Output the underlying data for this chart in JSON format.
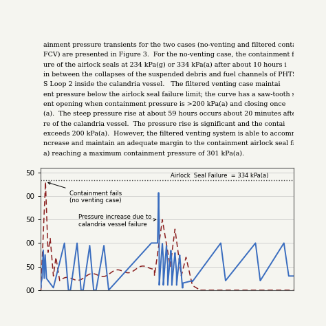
{
  "airlock_failure_y": 334,
  "airlock_label": "Airlock  Seal Failure  = 334 kPa(a)",
  "annotation1": "Containment fails\n(no venting case)",
  "annotation2": "Pressure increase due to\ncalandria vessel failure",
  "blue_color": "#3a6dbf",
  "red_color": "#8b2020",
  "grid_color": "#bbbbbb",
  "bg_color": "#f5f5f0",
  "text_bg": "#e8e8e0",
  "dotted_color": "#444444",
  "xlim": [
    0,
    80
  ],
  "ylim": [
    100,
    360
  ],
  "ytick_positions": [
    100,
    150,
    200,
    250,
    300,
    350
  ],
  "ytick_labels": [
    "00",
    "50",
    "00",
    "50",
    "00",
    "50"
  ],
  "paragraph_text": "ainment pressure transients for the two cases (no-venting and filtered conta\nFCV) are presented in Figure 3.  For the no-venting case, the containment fails\nure of the airlock seals at 234 kPa(g) or 334 kPa(a) after about 10 hours i\nin between the collapses of the suspended debris and fuel channels of PHTS L\nS Loop 2 inside the calandria vessel.   The filtered venting case maintai\nent pressure below the airlock seal failure limit; the curve has a saw-tooth sha\nent opening when containment pressure is >200 kPa(a) and closing once\n(a).  The steep pressure rise at about 59 hours occurs about 20 minutes after th\nre of the calandria vessel.  The pressure rise is significant and the contai\nexceeds 200 kPa(a).  However, the filtered venting system is able to accommod\nncrease and maintain an adequate margin to the containment airlock seal fai\na) reaching a maximum containment pressure of 301 kPa(a)."
}
